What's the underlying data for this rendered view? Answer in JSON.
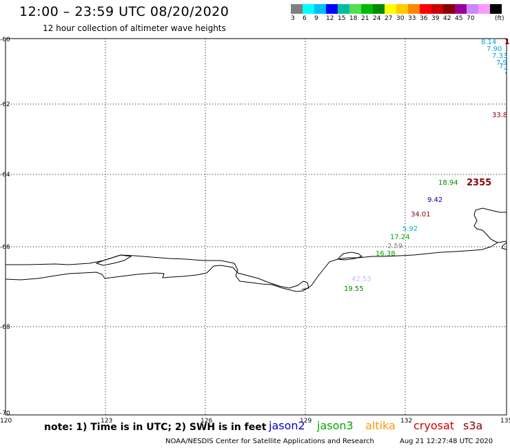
{
  "title": "12:00 – 23:59 UTC 08/20/2020",
  "subtitle": "12 hour collection of altimeter wave heights",
  "scale": {
    "colors": [
      "#808080",
      "#00ffff",
      "#00bfff",
      "#0000ff",
      "#00bfa0",
      "#55dd55",
      "#00bb00",
      "#008800",
      "#ffff00",
      "#ffcc00",
      "#ff8800",
      "#ff0000",
      "#cc0000",
      "#880000",
      "#990099",
      "#cc88ff",
      "#ff99ff",
      "#000000"
    ],
    "labels": [
      "3",
      "6",
      "9",
      "12",
      "15",
      "18",
      "21",
      "24",
      "27",
      "30",
      "33",
      "36",
      "39",
      "42",
      "45",
      "70"
    ],
    "unit": "(ft)"
  },
  "axes": {
    "lon_ticks": [
      "120",
      "123",
      "126",
      "129",
      "132",
      "135"
    ],
    "lat_ticks": [
      "-60",
      "-62",
      "-64",
      "-66",
      "-68",
      "-70"
    ]
  },
  "wave_labels": [
    {
      "text": "8.14",
      "color": "#00a0d0"
    },
    {
      "text": "7.90",
      "color": "#00a0d0"
    },
    {
      "text": "7.33",
      "color": "#00a0d0"
    },
    {
      "text": "7.9",
      "color": "#00a0d0"
    },
    {
      "text": "7.",
      "color": "#00a0d0"
    },
    {
      "text": "7",
      "color": "#00a0d0"
    },
    {
      "text": "1",
      "color": "#880000"
    },
    {
      "text": "33.8",
      "color": "#880000"
    },
    {
      "text": "18.94",
      "color": "#008800"
    },
    {
      "text": "2355",
      "color": "#880000"
    },
    {
      "text": "9.42",
      "color": "#0000aa"
    },
    {
      "text": "34.01",
      "color": "#880000"
    },
    {
      "text": "5.92",
      "color": "#00c0c0"
    },
    {
      "text": "17.24",
      "color": "#00aa00"
    },
    {
      "text": "2.59",
      "color": "#808080"
    },
    {
      "text": "16.38",
      "color": "#00aa00"
    },
    {
      "text": "42.53",
      "color": "#c8b4ff"
    },
    {
      "text": "19.55",
      "color": "#008800"
    }
  ],
  "note": "note:  1) Time is in UTC;  2) SWH is in feet",
  "satellites": [
    {
      "name": "jason2",
      "color": "#0000cc"
    },
    {
      "name": "jason3",
      "color": "#00aa00"
    },
    {
      "name": "altika",
      "color": "#ff9900"
    },
    {
      "name": "cryosat",
      "color": "#cc0000"
    },
    {
      "name": "s3a",
      "color": "#880000"
    }
  ],
  "footer_left": "NOAA/NESDIS Center for Satellite Applications and Research",
  "footer_right": "Aug 21 12:27:48 UTC 2020"
}
